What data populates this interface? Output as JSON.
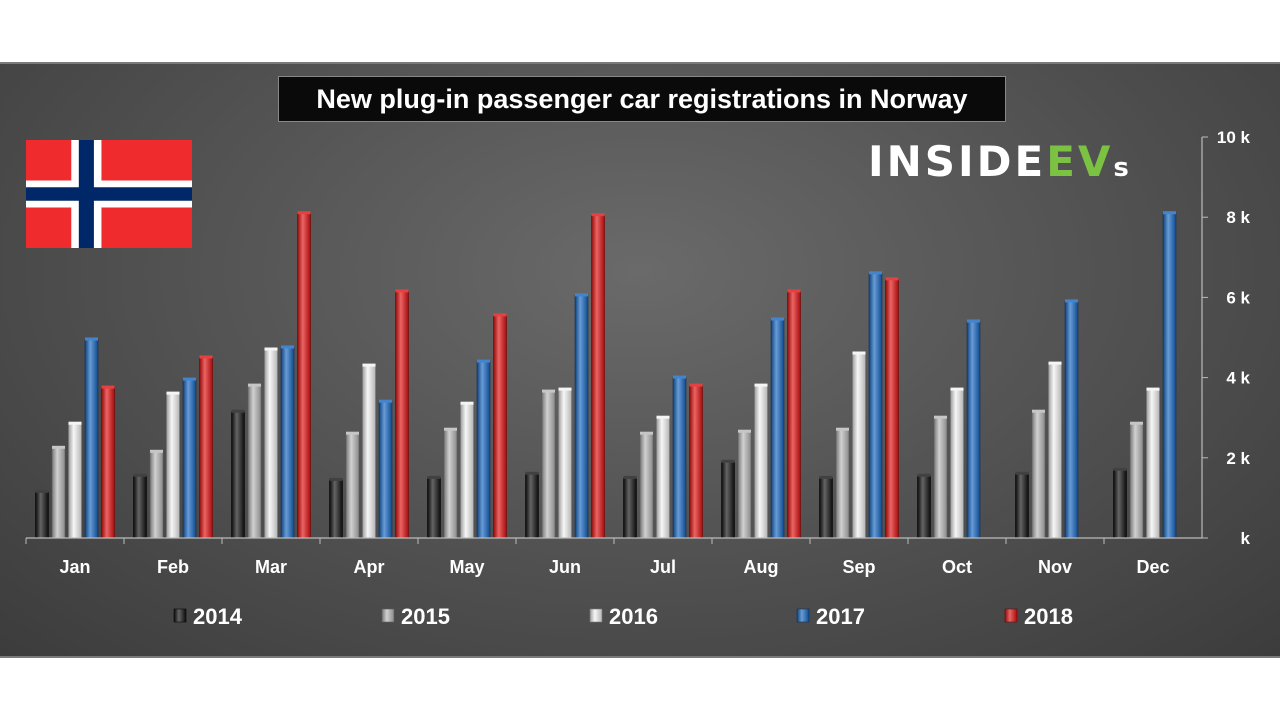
{
  "chart_data": {
    "type": "bar",
    "title": "New plug-in passenger car registrations in Norway",
    "categories": [
      "Jan",
      "Feb",
      "Mar",
      "Apr",
      "May",
      "Jun",
      "Jul",
      "Aug",
      "Sep",
      "Oct",
      "Nov",
      "Dec"
    ],
    "series": [
      {
        "name": "2014",
        "color": "#111111",
        "values": [
          1150,
          1550,
          3150,
          1450,
          1500,
          1600,
          1500,
          1900,
          1500,
          1550,
          1600,
          1700
        ]
      },
      {
        "name": "2015",
        "color": "#b8b8b8",
        "values": [
          2250,
          2150,
          3800,
          2600,
          2700,
          3650,
          2600,
          2650,
          2700,
          3000,
          3150,
          2850
        ]
      },
      {
        "name": "2016",
        "color": "#f2f2f2",
        "values": [
          2850,
          3600,
          4700,
          4300,
          3350,
          3700,
          3000,
          3800,
          4600,
          3700,
          4350,
          3700
        ]
      },
      {
        "name": "2017",
        "color": "#1565c0",
        "values": [
          4950,
          3950,
          4750,
          3400,
          4400,
          6050,
          4000,
          5450,
          6600,
          5400,
          5900,
          8100
        ]
      },
      {
        "name": "2018",
        "color": "#e01010",
        "values": [
          3750,
          4500,
          8100,
          6150,
          5550,
          8050,
          3800,
          6150,
          6450,
          null,
          null,
          null
        ]
      }
    ],
    "yaxis": {
      "position": "right",
      "ylim": [
        0,
        10000
      ],
      "tick_values": [
        0,
        2000,
        4000,
        6000,
        8000,
        10000
      ],
      "tick_labels": [
        "k",
        "2 k",
        "4 k",
        "6 k",
        "8 k",
        "10 k"
      ]
    },
    "legend": "bottom",
    "grid": false
  },
  "brand": {
    "part1": "INSIDE",
    "part2": "EV",
    "part3": "s"
  },
  "flag": {
    "country": "Norway",
    "colors": {
      "field": "#ef2b2d",
      "cross_white": "#ffffff",
      "cross_blue": "#002868"
    }
  },
  "colors": {
    "background": "#555555",
    "axis": "#bbbbbb",
    "text": "#ffffff"
  }
}
